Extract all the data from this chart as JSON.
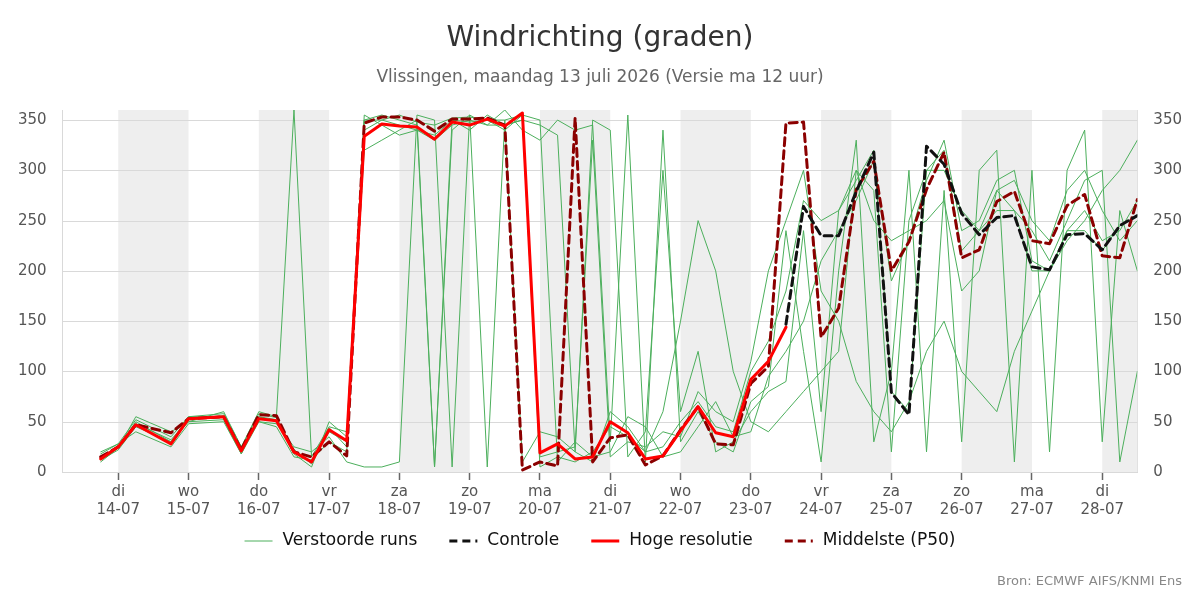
{
  "chart_data": {
    "type": "line",
    "title": "Windrichting (graden)",
    "subtitle": "Vlissingen, maandag 13 juli 2026 (Versie ma 12 uur)",
    "x": [
      "2026-07-13T18:00",
      "2026-07-14T00:00",
      "2026-07-14T06:00",
      "2026-07-14T18:00",
      "2026-07-15T00:00",
      "2026-07-15T12:00",
      "2026-07-15T18:00",
      "2026-07-16T00:00",
      "2026-07-16T06:00",
      "2026-07-16T12:00",
      "2026-07-16T18:00",
      "2026-07-17T00:00",
      "2026-07-17T06:00",
      "2026-07-17T12:00",
      "2026-07-17T18:00",
      "2026-07-18T00:00",
      "2026-07-18T06:00",
      "2026-07-18T12:00",
      "2026-07-18T18:00",
      "2026-07-19T00:00",
      "2026-07-19T06:00",
      "2026-07-19T12:00",
      "2026-07-19T18:00",
      "2026-07-20T00:00",
      "2026-07-20T06:00",
      "2026-07-20T12:00",
      "2026-07-20T18:00",
      "2026-07-21T00:00",
      "2026-07-21T06:00",
      "2026-07-21T12:00",
      "2026-07-21T18:00",
      "2026-07-22T00:00",
      "2026-07-22T06:00",
      "2026-07-22T12:00",
      "2026-07-22T18:00",
      "2026-07-23T00:00",
      "2026-07-23T06:00",
      "2026-07-23T12:00",
      "2026-07-23T18:00",
      "2026-07-24T00:00",
      "2026-07-24T06:00",
      "2026-07-24T12:00",
      "2026-07-24T18:00",
      "2026-07-25T00:00",
      "2026-07-25T06:00",
      "2026-07-25T12:00",
      "2026-07-25T18:00",
      "2026-07-26T00:00",
      "2026-07-26T06:00",
      "2026-07-26T12:00",
      "2026-07-26T18:00",
      "2026-07-27T00:00",
      "2026-07-27T06:00",
      "2026-07-27T12:00",
      "2026-07-27T18:00",
      "2026-07-28T00:00",
      "2026-07-28T06:00",
      "2026-07-28T12:00"
    ],
    "series": [
      {
        "name": "Verstoorde runs",
        "color": "#4caf5c",
        "line_style": "solid",
        "values": [
          18,
          28,
          52,
          35,
          55,
          58,
          25,
          60,
          55,
          360,
          15,
          45,
          40,
          350,
          355,
          350,
          345,
          5,
          350,
          340,
          355,
          345,
          350,
          345,
          335,
          20,
          350,
          340,
          15,
          40,
          300,
          60,
          120,
          20,
          30,
          60,
          80,
          90,
          240,
          60,
          260,
          300,
          280,
          20,
          250,
          300,
          320,
          220,
          240,
          280,
          290,
          250,
          230,
          280,
          300,
          260,
          230,
          250
        ]
      },
      {
        "color": "#4caf5c",
        "line_style": "solid",
        "values": [
          12,
          22,
          45,
          30,
          50,
          52,
          18,
          55,
          50,
          22,
          8,
          40,
          30,
          340,
          350,
          345,
          340,
          335,
          350,
          348,
          350,
          340,
          355,
          350,
          10,
          30,
          15,
          20,
          55,
          45,
          15,
          20,
          45,
          70,
          35,
          40,
          95,
          120,
          150,
          210,
          240,
          270,
          310,
          190,
          230,
          290,
          330,
          240,
          250,
          290,
          300,
          210,
          200,
          240,
          260,
          230,
          240,
          270
        ]
      },
      {
        "color": "#4caf5c",
        "line_style": "solid",
        "values": [
          20,
          28,
          40,
          25,
          48,
          50,
          18,
          50,
          48,
          25,
          20,
          35,
          10,
          5,
          5,
          10,
          355,
          350,
          5,
          355,
          5,
          350,
          10,
          40,
          35,
          20,
          10,
          60,
          45,
          20,
          25,
          50,
          70,
          45,
          40,
          100,
          130,
          180,
          270,
          250,
          260,
          290,
          320,
          80,
          60,
          300,
          300,
          260,
          240,
          260,
          260,
          200,
          200,
          240,
          240,
          220,
          245,
          255
        ]
      },
      {
        "color": "#4caf5c",
        "line_style": "solid",
        "values": [
          15,
          25,
          50,
          30,
          55,
          55,
          20,
          55,
          52,
          18,
          5,
          50,
          35,
          320,
          330,
          340,
          350,
          5,
          340,
          355,
          345,
          360,
          340,
          330,
          350,
          340,
          345,
          30,
          355,
          10,
          340,
          30,
          60,
          30,
          20,
          70,
          85,
          240,
          120,
          10,
          200,
          330,
          30,
          100,
          300,
          20,
          280,
          30,
          300,
          320,
          10,
          300,
          20,
          300,
          340,
          30,
          260,
          200
        ]
      },
      {
        "color": "#4caf5c",
        "line_style": "solid",
        "values": [
          10,
          24,
          55,
          40,
          50,
          60,
          25,
          50,
          45,
          15,
          12,
          30,
          20,
          355,
          345,
          335,
          340,
          330,
          345,
          350,
          345,
          345,
          350,
          15,
          20,
          25,
          330,
          15,
          30,
          25,
          40,
          35,
          80,
          60,
          50,
          110,
          200,
          250,
          300,
          180,
          150,
          90,
          60,
          40,
          70,
          120,
          150,
          100,
          80,
          60,
          120,
          160,
          200,
          230,
          250,
          280,
          300,
          330
        ]
      },
      {
        "color": "#4caf5c",
        "line_style": "solid",
        "values": [
          14,
          26,
          48,
          32,
          52,
          56,
          24,
          58,
          54,
          22,
          10,
          44,
          25,
          350,
          350,
          355,
          348,
          345,
          352,
          353,
          350,
          350,
          355,
          5,
          15,
          10,
          20,
          45,
          35,
          20,
          60,
          150,
          250,
          200,
          100,
          50,
          40,
          60,
          80,
          100,
          120,
          300,
          250,
          230,
          240,
          250,
          270,
          180,
          200,
          280,
          260,
          240,
          210,
          250,
          290,
          300,
          10,
          100
        ]
      },
      {
        "name": "Controle",
        "color": "#111111",
        "line_style": "dashed",
        "values": [
          null,
          null,
          null,
          null,
          null,
          null,
          null,
          null,
          null,
          null,
          null,
          null,
          null,
          null,
          null,
          null,
          null,
          null,
          null,
          null,
          null,
          null,
          null,
          null,
          null,
          null,
          null,
          null,
          null,
          null,
          null,
          null,
          null,
          null,
          null,
          null,
          null,
          147,
          264,
          235,
          235,
          279,
          318,
          79,
          57,
          324,
          306,
          257,
          236,
          253,
          255,
          204,
          201,
          236,
          237,
          221,
          245,
          255
        ]
      },
      {
        "name": "Hoge resolutie",
        "color": "#ff0000",
        "line_style": "solid",
        "values": [
          13,
          25,
          47,
          28,
          53,
          55,
          21,
          53,
          51,
          20,
          10,
          42,
          31,
          334,
          346,
          344,
          343,
          331,
          348,
          345,
          351,
          344,
          357,
          19,
          28,
          13,
          15,
          50,
          39,
          13,
          16,
          41,
          65,
          39,
          35,
          92,
          110,
          144,
          null,
          null,
          null,
          null,
          null,
          null,
          null,
          null,
          null,
          null,
          null,
          null,
          null,
          null,
          null,
          null,
          null,
          null,
          null,
          null
        ]
      },
      {
        "name": "Middelste (P50)",
        "color": "#8b0000",
        "line_style": "dashed",
        "values": [
          15,
          25,
          47,
          39,
          53,
          55,
          22,
          57,
          56,
          20,
          15,
          30,
          16,
          347,
          353,
          353,
          350,
          339,
          351,
          351,
          352,
          345,
          2,
          10,
          6,
          352,
          10,
          34,
          37,
          7,
          16,
          42,
          65,
          28,
          27,
          88,
          105,
          347,
          348,
          134,
          163,
          281,
          309,
          200,
          229,
          281,
          318,
          213,
          221,
          269,
          279,
          230,
          227,
          265,
          276,
          215,
          213,
          271
        ]
      }
    ],
    "xlim": [
      "2026-07-13T05:00",
      "2026-07-28T12:00"
    ],
    "xticks": [
      {
        "value": "2026-07-14",
        "label": "di\n14-07"
      },
      {
        "value": "2026-07-15",
        "label": "wo\n15-07"
      },
      {
        "value": "2026-07-16",
        "label": "do\n16-07"
      },
      {
        "value": "2026-07-17",
        "label": "vr\n17-07"
      },
      {
        "value": "2026-07-18",
        "label": "za\n18-07"
      },
      {
        "value": "2026-07-19",
        "label": "zo\n19-07"
      },
      {
        "value": "2026-07-20",
        "label": "ma\n20-07"
      },
      {
        "value": "2026-07-21",
        "label": "di\n21-07"
      },
      {
        "value": "2026-07-22",
        "label": "wo\n22-07"
      },
      {
        "value": "2026-07-23",
        "label": "do\n23-07"
      },
      {
        "value": "2026-07-24",
        "label": "vr\n24-07"
      },
      {
        "value": "2026-07-25",
        "label": "za\n25-07"
      },
      {
        "value": "2026-07-26",
        "label": "zo\n26-07"
      },
      {
        "value": "2026-07-27",
        "label": "ma\n27-07"
      },
      {
        "value": "2026-07-28",
        "label": "di\n28-07"
      }
    ],
    "ylim": [
      0,
      360
    ],
    "yticks": [
      0,
      50,
      100,
      150,
      200,
      250,
      300,
      350
    ],
    "y2lim": [
      0,
      360
    ],
    "y2ticks": [
      0,
      50,
      100,
      150,
      200,
      250,
      300,
      350
    ],
    "bands": [
      {
        "axis": "x",
        "from": "2026-07-14",
        "to": "2026-07-15",
        "color": "#eeeeee"
      },
      {
        "axis": "x",
        "from": "2026-07-16",
        "to": "2026-07-17",
        "color": "#eeeeee"
      },
      {
        "axis": "x",
        "from": "2026-07-18",
        "to": "2026-07-19",
        "color": "#eeeeee"
      },
      {
        "axis": "x",
        "from": "2026-07-20",
        "to": "2026-07-21",
        "color": "#eeeeee"
      },
      {
        "axis": "x",
        "from": "2026-07-22",
        "to": "2026-07-23",
        "color": "#eeeeee"
      },
      {
        "axis": "x",
        "from": "2026-07-24",
        "to": "2026-07-25",
        "color": "#eeeeee"
      },
      {
        "axis": "x",
        "from": "2026-07-26",
        "to": "2026-07-27",
        "color": "#eeeeee"
      },
      {
        "axis": "x",
        "from": "2026-07-28",
        "to": "2026-07-28T12:00",
        "color": "#eeeeee"
      }
    ],
    "grid": "y",
    "legend": "bottom",
    "marker": "none",
    "annotations": [
      "Bron: ECMWF AIFS/KNMI Ens"
    ]
  }
}
